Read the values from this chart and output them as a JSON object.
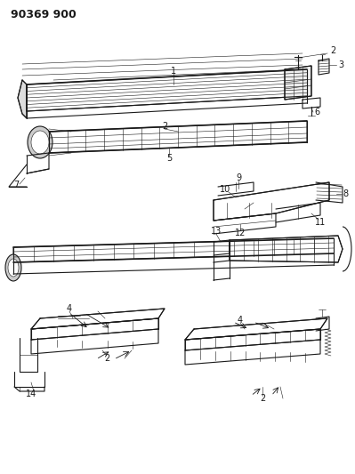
{
  "title": "90369 900",
  "bg": "#ffffff",
  "lc": "#1a1a1a",
  "lw": 0.8,
  "lw_thin": 0.4,
  "lw_thick": 1.2,
  "fig_w": 3.99,
  "fig_h": 5.33,
  "dpi": 100
}
